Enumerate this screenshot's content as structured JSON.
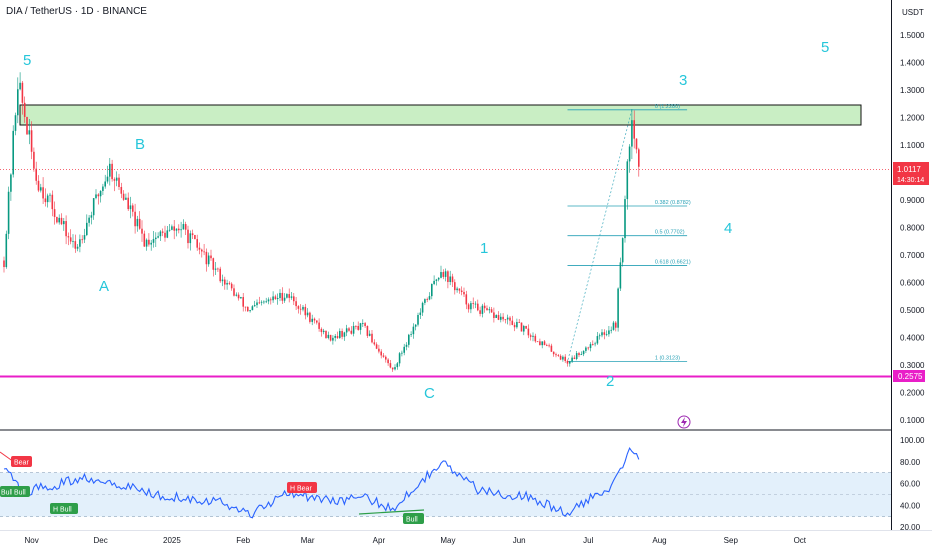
{
  "header": {
    "title": "DIA / TetherUS · 1D · BINANCE"
  },
  "price_scale": {
    "currency": "USDT",
    "ticks": [
      "1.5000",
      "1.4000",
      "1.3000",
      "1.2000",
      "1.1000",
      "1.0000",
      "0.9000",
      "0.8000",
      "0.7000",
      "0.6000",
      "0.5000",
      "0.4000",
      "0.3000",
      "0.2000",
      "0.1000"
    ],
    "last_price": "1.0117",
    "countdown": "14:30:14",
    "level_label": "0.2575",
    "colors": {
      "last": "#f23645",
      "level": "#e91ec8"
    }
  },
  "rsi_scale": {
    "ticks": [
      "100.00",
      "80.00",
      "60.00",
      "40.00",
      "20.00"
    ]
  },
  "time_axis": {
    "labels": [
      "Nov",
      "Dec",
      "2025",
      "Feb",
      "Mar",
      "Apr",
      "May",
      "Jun",
      "Jul",
      "Aug",
      "Sep",
      "Oct"
    ]
  },
  "elliott_labels": [
    "5",
    "A",
    "B",
    "C",
    "1",
    "2",
    "3",
    "4",
    "5"
  ],
  "fib_levels": [
    {
      "label": "0 (1.2280)",
      "price": 1.228
    },
    {
      "label": "0.382 (0.8782)",
      "price": 0.8782
    },
    {
      "label": "0.5 (0.7702)",
      "price": 0.7702
    },
    {
      "label": "0.618 (0.6621)",
      "price": 0.6621
    },
    {
      "label": "1 (0.3123)",
      "price": 0.3123
    }
  ],
  "divergence_tags": [
    "Bear",
    "Bull",
    "Bull",
    "H Bull",
    "H Bear",
    "Bull"
  ],
  "resistance_zone": {
    "low": 1.17,
    "high": 1.245,
    "color": "#b7e8b0"
  },
  "support_level": 0.2575,
  "lightning_icon": "lightning-icon",
  "chart_data": {
    "type": "candlestick",
    "symbol": "DIA / TetherUS",
    "interval": "1D",
    "exchange": "BINANCE",
    "ylim": [
      0.06,
      1.56
    ],
    "key_points": [
      {
        "date": "2024-10-20",
        "price": 0.68
      },
      {
        "date": "2024-10-26",
        "price": 1.34
      },
      {
        "date": "2024-11-03",
        "price": 0.98
      },
      {
        "date": "2024-11-20",
        "price": 0.72
      },
      {
        "date": "2024-12-05",
        "price": 1.02
      },
      {
        "date": "2024-12-20",
        "price": 0.75
      },
      {
        "date": "2025-01-05",
        "price": 0.8
      },
      {
        "date": "2025-02-03",
        "price": 0.5
      },
      {
        "date": "2025-02-20",
        "price": 0.56
      },
      {
        "date": "2025-03-10",
        "price": 0.4
      },
      {
        "date": "2025-03-25",
        "price": 0.44
      },
      {
        "date": "2025-04-07",
        "price": 0.28
      },
      {
        "date": "2025-04-28",
        "price": 0.65
      },
      {
        "date": "2025-05-10",
        "price": 0.52
      },
      {
        "date": "2025-06-01",
        "price": 0.44
      },
      {
        "date": "2025-06-22",
        "price": 0.31
      },
      {
        "date": "2025-07-13",
        "price": 0.45
      },
      {
        "date": "2025-07-20",
        "price": 1.228
      },
      {
        "date": "2025-07-23",
        "price": 1.0117
      }
    ],
    "rsi_ylim": [
      15,
      105
    ],
    "rsi_key_points": [
      {
        "date": "2024-10-20",
        "rsi": 75
      },
      {
        "date": "2024-10-28",
        "rsi": 52
      },
      {
        "date": "2024-11-10",
        "rsi": 58
      },
      {
        "date": "2024-11-25",
        "rsi": 66
      },
      {
        "date": "2024-12-05",
        "rsi": 62
      },
      {
        "date": "2024-12-25",
        "rsi": 50
      },
      {
        "date": "2025-01-20",
        "rsi": 44
      },
      {
        "date": "2025-02-05",
        "rsi": 32
      },
      {
        "date": "2025-02-20",
        "rsi": 53
      },
      {
        "date": "2025-03-10",
        "rsi": 44
      },
      {
        "date": "2025-03-25",
        "rsi": 47
      },
      {
        "date": "2025-04-07",
        "rsi": 37
      },
      {
        "date": "2025-04-28",
        "rsi": 80
      },
      {
        "date": "2025-05-15",
        "rsi": 53
      },
      {
        "date": "2025-06-05",
        "rsi": 48
      },
      {
        "date": "2025-06-22",
        "rsi": 32
      },
      {
        "date": "2025-07-10",
        "rsi": 57
      },
      {
        "date": "2025-07-20",
        "rsi": 93
      },
      {
        "date": "2025-07-23",
        "rsi": 86
      }
    ],
    "rsi_bands": [
      70,
      50,
      30
    ]
  }
}
